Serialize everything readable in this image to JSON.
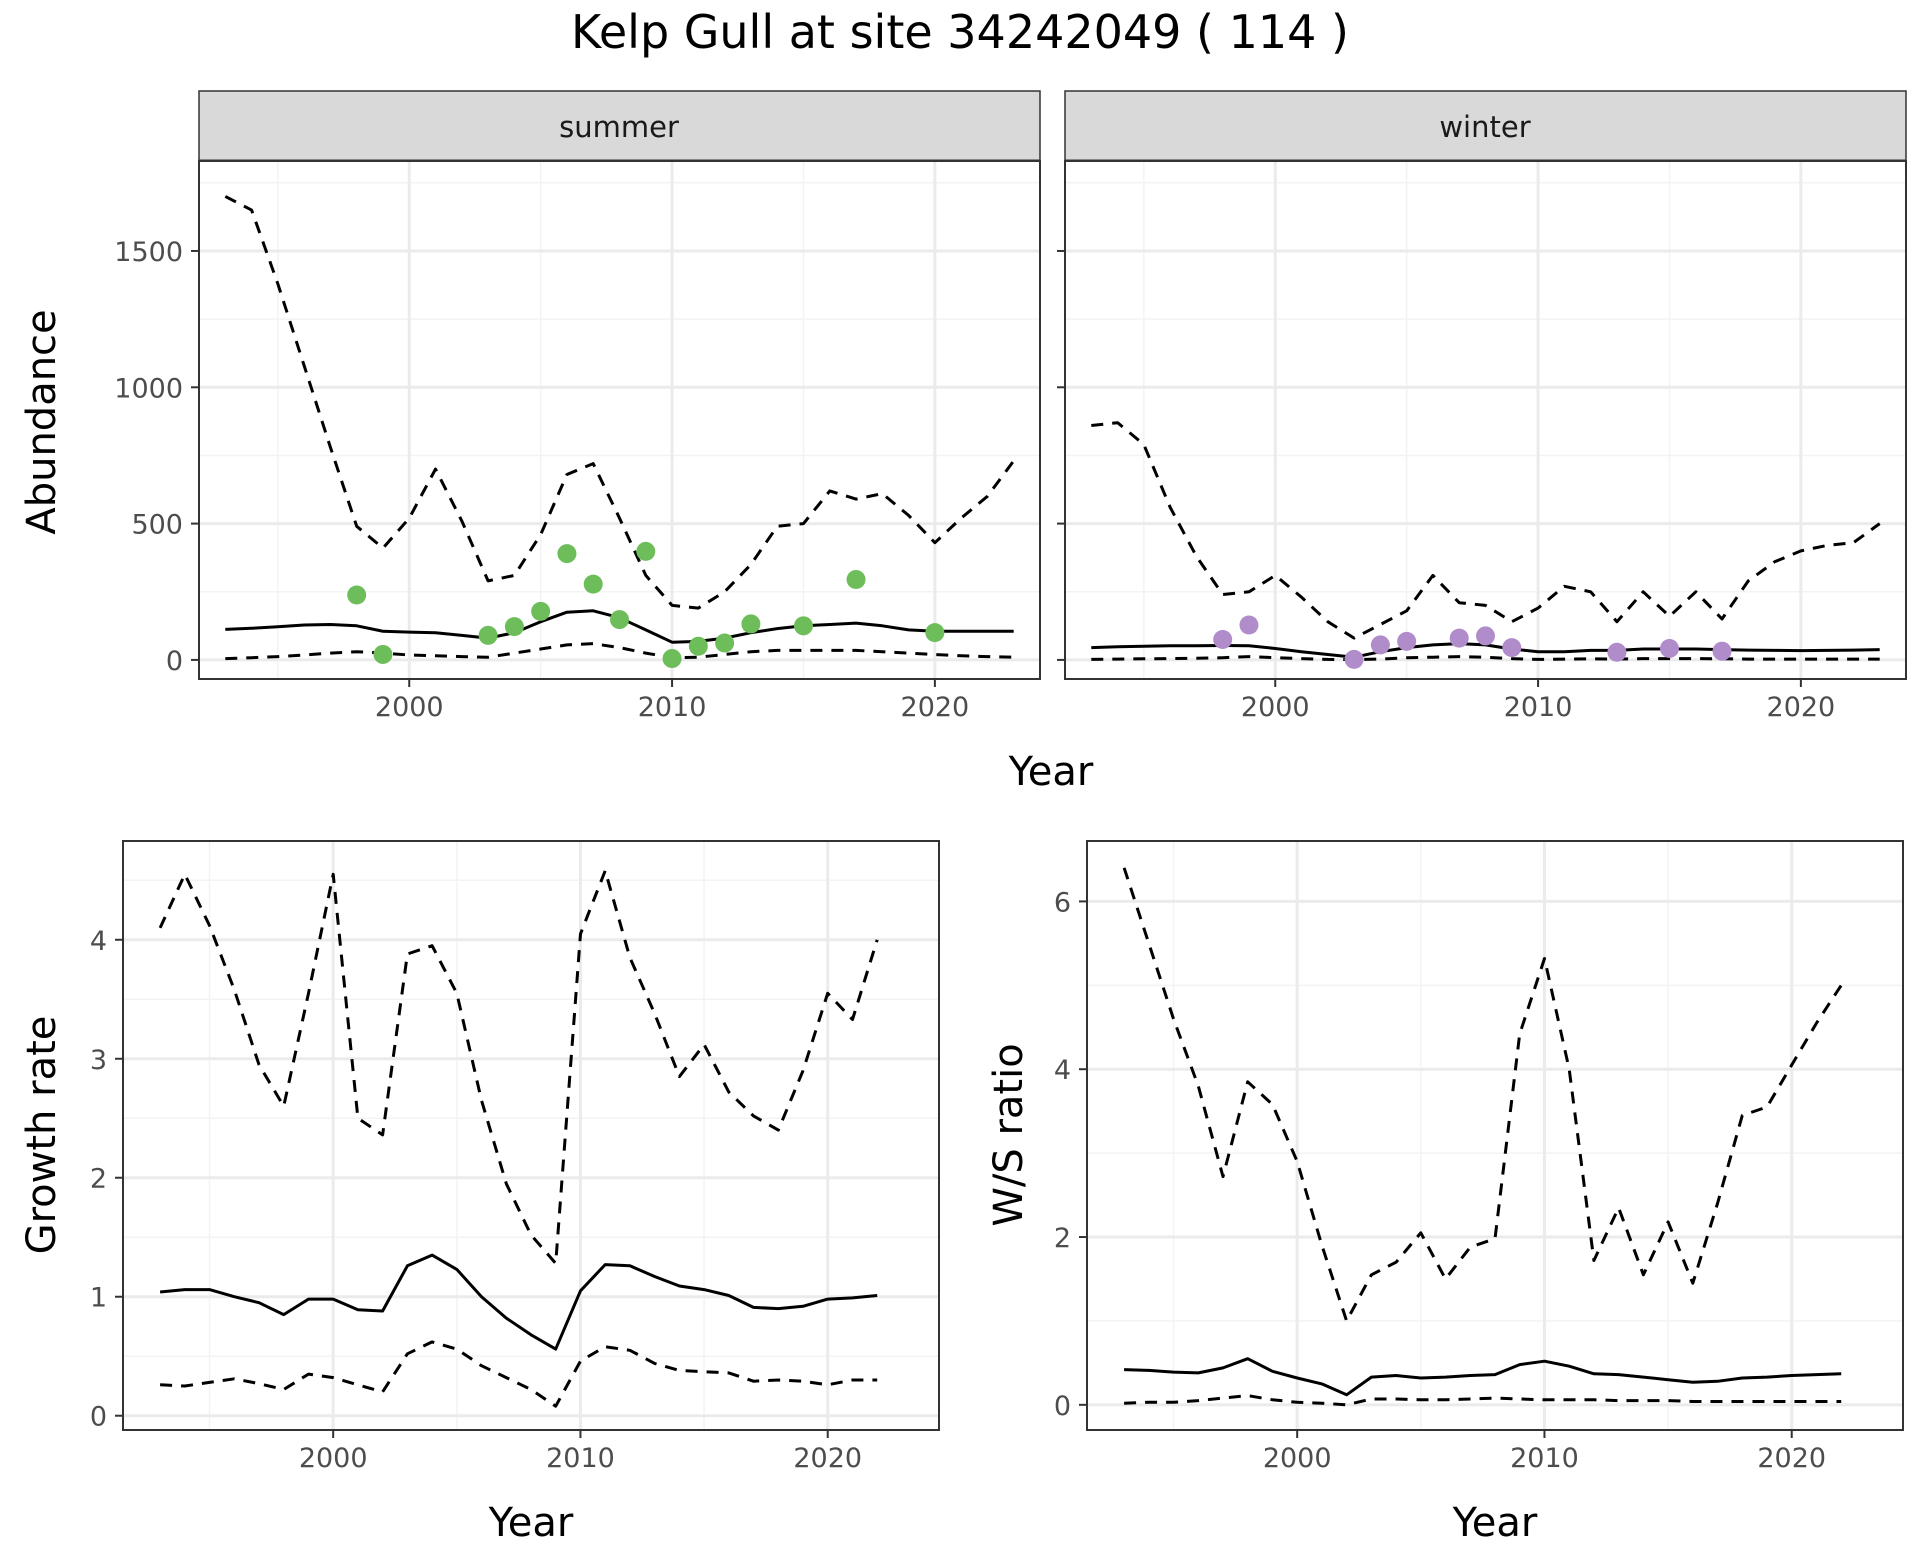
{
  "title": "Kelp Gull at site 34242049 ( 114 )",
  "colors": {
    "summer_points": "#6DBE5B",
    "winter_points": "#B08CCB",
    "line": "#000000",
    "grid_major": "#EBEBEB",
    "grid_minor": "#F3F3F3",
    "strip_fill": "#D9D9D9",
    "panel_border": "#333333"
  },
  "chart_data": [
    {
      "type": "line",
      "facet": "summer",
      "strip_label": "summer",
      "xlabel": "Year",
      "ylabel": "Abundance",
      "xlim": [
        1992,
        2024
      ],
      "ylim": [
        -70,
        1830
      ],
      "x_ticks": [
        2000,
        2010,
        2020
      ],
      "y_ticks": [
        0,
        500,
        1000,
        1500
      ],
      "y_tick_labels": [
        "0",
        "500",
        "1000",
        "1500"
      ],
      "grid": true,
      "lines": [
        {
          "style": "solid",
          "x": [
            1993,
            1994,
            1995,
            1996,
            1997,
            1998,
            1999,
            2000,
            2001,
            2002,
            2003,
            2004,
            2005,
            2006,
            2007,
            2008,
            2009,
            2010,
            2011,
            2012,
            2013,
            2014,
            2015,
            2016,
            2017,
            2018,
            2019,
            2020,
            2021,
            2022,
            2023
          ],
          "y": [
            112,
            116,
            122,
            128,
            130,
            125,
            105,
            102,
            100,
            90,
            80,
            100,
            140,
            175,
            180,
            155,
            110,
            65,
            68,
            80,
            100,
            115,
            125,
            130,
            135,
            125,
            110,
            105,
            105,
            105,
            105
          ]
        },
        {
          "style": "dashed",
          "x": [
            1993,
            1994,
            1995,
            1996,
            1997,
            1998,
            1999,
            2000,
            2001,
            2002,
            2003,
            2004,
            2005,
            2006,
            2007,
            2008,
            2009,
            2010,
            2011,
            2012,
            2013,
            2014,
            2015,
            2016,
            2017,
            2018,
            2019,
            2020,
            2021,
            2022,
            2023
          ],
          "y": [
            1700,
            1650,
            1380,
            1080,
            780,
            490,
            410,
            520,
            700,
            510,
            290,
            310,
            460,
            680,
            720,
            520,
            310,
            200,
            190,
            250,
            350,
            490,
            500,
            620,
            590,
            610,
            530,
            430,
            520,
            600,
            730
          ]
        },
        {
          "style": "dashed",
          "x": [
            1993,
            1994,
            1995,
            1996,
            1997,
            1998,
            1999,
            2000,
            2001,
            2002,
            2003,
            2004,
            2005,
            2006,
            2007,
            2008,
            2009,
            2010,
            2011,
            2012,
            2013,
            2014,
            2015,
            2016,
            2017,
            2018,
            2019,
            2020,
            2021,
            2022,
            2023
          ],
          "y": [
            5,
            8,
            12,
            18,
            25,
            30,
            25,
            18,
            15,
            12,
            10,
            25,
            40,
            55,
            60,
            45,
            25,
            8,
            10,
            20,
            30,
            35,
            35,
            35,
            35,
            30,
            25,
            20,
            15,
            12,
            10
          ]
        }
      ],
      "points": {
        "x": [
          1998,
          1999,
          2003,
          2004,
          2005,
          2006,
          2007,
          2008,
          2009,
          2010,
          2011,
          2012,
          2013,
          2015,
          2017,
          2020
        ],
        "y": [
          238,
          20,
          90,
          122,
          178,
          390,
          278,
          148,
          398,
          5,
          50,
          62,
          132,
          125,
          295,
          100
        ]
      }
    },
    {
      "type": "line",
      "facet": "winter",
      "strip_label": "winter",
      "xlabel": "Year",
      "ylabel": "Abundance",
      "xlim": [
        1992,
        2024
      ],
      "ylim": [
        -70,
        1830
      ],
      "x_ticks": [
        2000,
        2010,
        2020
      ],
      "y_ticks": [
        0,
        500,
        1000,
        1500
      ],
      "grid": true,
      "lines": [
        {
          "style": "solid",
          "x": [
            1993,
            1994,
            1995,
            1996,
            1997,
            1998,
            1999,
            2000,
            2001,
            2002,
            2003,
            2004,
            2005,
            2006,
            2007,
            2008,
            2009,
            2010,
            2011,
            2012,
            2013,
            2014,
            2015,
            2016,
            2017,
            2018,
            2019,
            2020,
            2021,
            2022,
            2023
          ],
          "y": [
            45,
            48,
            50,
            52,
            52,
            53,
            52,
            42,
            30,
            20,
            10,
            30,
            45,
            55,
            60,
            55,
            40,
            30,
            30,
            35,
            35,
            40,
            40,
            40,
            38,
            36,
            35,
            34,
            35,
            36,
            38
          ]
        },
        {
          "style": "dashed",
          "x": [
            1993,
            1994,
            1995,
            1996,
            1997,
            1998,
            1999,
            2000,
            2001,
            2002,
            2003,
            2004,
            2005,
            2006,
            2007,
            2008,
            2009,
            2010,
            2011,
            2012,
            2013,
            2014,
            2015,
            2016,
            2017,
            2018,
            2019,
            2020,
            2021,
            2022,
            2023
          ],
          "y": [
            860,
            870,
            790,
            560,
            380,
            240,
            250,
            310,
            230,
            140,
            80,
            130,
            180,
            310,
            210,
            200,
            140,
            190,
            270,
            250,
            140,
            250,
            160,
            250,
            150,
            290,
            360,
            400,
            420,
            430,
            500
          ]
        },
        {
          "style": "dashed",
          "x": [
            1993,
            1994,
            1995,
            1996,
            1997,
            1998,
            1999,
            2000,
            2001,
            2002,
            2003,
            2004,
            2005,
            2006,
            2007,
            2008,
            2009,
            2010,
            2011,
            2012,
            2013,
            2014,
            2015,
            2016,
            2017,
            2018,
            2019,
            2020,
            2021,
            2022,
            2023
          ],
          "y": [
            2,
            3,
            4,
            5,
            6,
            8,
            12,
            8,
            5,
            2,
            1,
            3,
            8,
            10,
            12,
            10,
            5,
            2,
            3,
            4,
            3,
            5,
            5,
            5,
            4,
            3,
            3,
            3,
            3,
            3,
            3
          ]
        }
      ],
      "points": {
        "x": [
          1998,
          1999,
          2003,
          2004,
          2005,
          2007,
          2008,
          2009,
          2013,
          2015,
          2017
        ],
        "y": [
          75,
          128,
          2,
          55,
          68,
          80,
          88,
          45,
          28,
          42,
          32
        ]
      }
    },
    {
      "type": "line",
      "facet": "growth",
      "xlabel": "Year",
      "ylabel": "Growth rate",
      "xlim": [
        1991.5,
        2024.5
      ],
      "ylim": [
        -0.12,
        4.83
      ],
      "x_ticks": [
        2000,
        2010,
        2020
      ],
      "y_ticks": [
        0,
        1,
        2,
        3,
        4
      ],
      "y_tick_labels": [
        "0",
        "1",
        "2",
        "3",
        "4"
      ],
      "grid": true,
      "lines": [
        {
          "style": "solid",
          "x": [
            1993,
            1994,
            1995,
            1996,
            1997,
            1998,
            1999,
            2000,
            2001,
            2002,
            2003,
            2004,
            2005,
            2006,
            2007,
            2008,
            2009,
            2010,
            2011,
            2012,
            2013,
            2014,
            2015,
            2016,
            2017,
            2018,
            2019,
            2020,
            2021,
            2022
          ],
          "y": [
            1.04,
            1.06,
            1.06,
            1.0,
            0.95,
            0.85,
            0.98,
            0.98,
            0.89,
            0.88,
            1.26,
            1.35,
            1.23,
            1.0,
            0.82,
            0.68,
            0.56,
            1.05,
            1.27,
            1.26,
            1.17,
            1.09,
            1.06,
            1.01,
            0.91,
            0.9,
            0.92,
            0.98,
            0.99,
            1.01
          ]
        },
        {
          "style": "dashed",
          "x": [
            1993,
            1994,
            1995,
            1996,
            1997,
            1998,
            1999,
            2000,
            2001,
            2002,
            2003,
            2004,
            2005,
            2006,
            2007,
            2008,
            2009,
            2010,
            2011,
            2012,
            2013,
            2014,
            2015,
            2016,
            2017,
            2018,
            2019,
            2020,
            2021,
            2022
          ],
          "y": [
            4.1,
            4.55,
            4.12,
            3.58,
            2.95,
            2.6,
            3.55,
            4.55,
            2.5,
            2.36,
            3.88,
            3.95,
            3.55,
            2.65,
            1.95,
            1.52,
            1.28,
            4.05,
            4.58,
            3.85,
            3.38,
            2.85,
            3.12,
            2.72,
            2.52,
            2.4,
            2.9,
            3.55,
            3.33,
            4.0
          ]
        },
        {
          "style": "dashed",
          "x": [
            1993,
            1994,
            1995,
            1996,
            1997,
            1998,
            1999,
            2000,
            2001,
            2002,
            2003,
            2004,
            2005,
            2006,
            2007,
            2008,
            2009,
            2010,
            2011,
            2012,
            2013,
            2014,
            2015,
            2016,
            2017,
            2018,
            2019,
            2020,
            2021,
            2022
          ],
          "y": [
            0.26,
            0.25,
            0.28,
            0.31,
            0.27,
            0.22,
            0.35,
            0.32,
            0.26,
            0.2,
            0.52,
            0.62,
            0.56,
            0.42,
            0.32,
            0.22,
            0.08,
            0.46,
            0.58,
            0.55,
            0.44,
            0.38,
            0.37,
            0.36,
            0.29,
            0.3,
            0.29,
            0.26,
            0.3,
            0.3
          ]
        }
      ]
    },
    {
      "type": "line",
      "facet": "ws",
      "xlabel": "Year",
      "ylabel": "W/S ratio",
      "xlim": [
        1991.5,
        2024.5
      ],
      "ylim": [
        -0.3,
        6.72
      ],
      "x_ticks": [
        2000,
        2010,
        2020
      ],
      "y_ticks": [
        0,
        2,
        4,
        6
      ],
      "y_tick_labels": [
        "0",
        "2",
        "4",
        "6"
      ],
      "grid": true,
      "lines": [
        {
          "style": "solid",
          "x": [
            1993,
            1994,
            1995,
            1996,
            1997,
            1998,
            1999,
            2000,
            2001,
            2002,
            2003,
            2004,
            2005,
            2006,
            2007,
            2008,
            2009,
            2010,
            2011,
            2012,
            2013,
            2014,
            2015,
            2016,
            2017,
            2018,
            2019,
            2020,
            2021,
            2022
          ],
          "y": [
            0.42,
            0.41,
            0.39,
            0.38,
            0.44,
            0.55,
            0.4,
            0.32,
            0.25,
            0.12,
            0.33,
            0.35,
            0.32,
            0.33,
            0.35,
            0.36,
            0.48,
            0.52,
            0.46,
            0.37,
            0.36,
            0.33,
            0.3,
            0.27,
            0.28,
            0.32,
            0.33,
            0.35,
            0.36,
            0.37
          ]
        },
        {
          "style": "dashed",
          "x": [
            1993,
            1994,
            1995,
            1996,
            1997,
            1998,
            1999,
            2000,
            2001,
            2002,
            2003,
            2004,
            2005,
            2006,
            2007,
            2008,
            2009,
            2010,
            2011,
            2012,
            2013,
            2014,
            2015,
            2016,
            2017,
            2018,
            2019,
            2020,
            2021,
            2022
          ],
          "y": [
            6.4,
            5.5,
            4.6,
            3.8,
            2.72,
            3.85,
            3.58,
            2.9,
            1.9,
            1.0,
            1.55,
            1.7,
            2.05,
            1.5,
            1.88,
            1.98,
            4.42,
            5.32,
            4.0,
            1.72,
            2.35,
            1.55,
            2.18,
            1.45,
            2.4,
            3.45,
            3.55,
            4.05,
            4.55,
            5.0
          ]
        },
        {
          "style": "dashed",
          "x": [
            1993,
            1994,
            1995,
            1996,
            1997,
            1998,
            1999,
            2000,
            2001,
            2002,
            2003,
            2004,
            2005,
            2006,
            2007,
            2008,
            2009,
            2010,
            2011,
            2012,
            2013,
            2014,
            2015,
            2016,
            2017,
            2018,
            2019,
            2020,
            2021,
            2022
          ],
          "y": [
            0.02,
            0.03,
            0.03,
            0.05,
            0.08,
            0.11,
            0.06,
            0.03,
            0.02,
            0.0,
            0.07,
            0.07,
            0.06,
            0.06,
            0.07,
            0.08,
            0.07,
            0.06,
            0.06,
            0.06,
            0.05,
            0.05,
            0.05,
            0.04,
            0.04,
            0.04,
            0.04,
            0.04,
            0.04,
            0.04
          ]
        }
      ]
    }
  ]
}
